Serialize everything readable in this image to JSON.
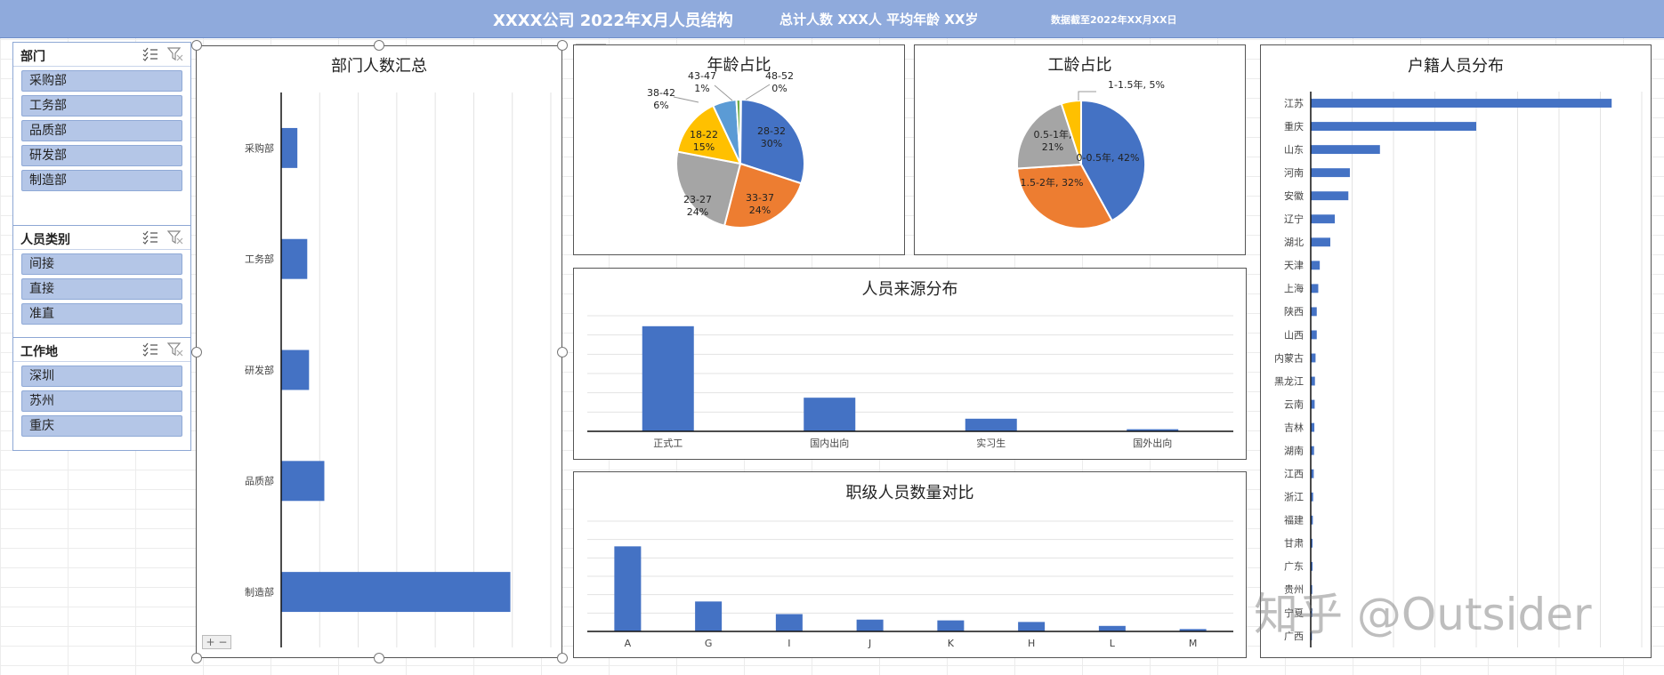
{
  "header": {
    "title": "XXXX公司  2022年X月人员结构",
    "total": "总计人数 XXX人   平均年龄 XX岁",
    "date": "数据截至2022年XX月XX日"
  },
  "slicers": [
    {
      "title": "部门",
      "items": [
        "采购部",
        "工务部",
        "品质部",
        "研发部",
        "制造部"
      ]
    },
    {
      "title": "人员类别",
      "items": [
        "间接",
        "直接",
        "准直"
      ]
    },
    {
      "title": "工作地",
      "items": [
        "深圳",
        "苏州",
        "重庆"
      ]
    }
  ],
  "icons": {
    "multi_select": "multi-select-icon",
    "clear_filter": "clear-filter-icon",
    "add_element": "plus-icon",
    "chart_style": "brush-icon"
  },
  "colors": {
    "header": "#8faadc",
    "bar": "#4472c4",
    "slicer_button": "#b4c6e7",
    "pie": [
      "#4472c4",
      "#ed7d31",
      "#a5a5a5",
      "#ffc000",
      "#5b9bd5",
      "#70ad47"
    ]
  },
  "zoom_control": "+ −",
  "watermark": "知乎 @Outsider",
  "chart_data": [
    {
      "id": "dept",
      "type": "bar",
      "orientation": "horizontal",
      "title": "部门人数汇总",
      "categories": [
        "采购部",
        "工务部",
        "研发部",
        "品质部",
        "制造部"
      ],
      "values": [
        18,
        29,
        31,
        48,
        255
      ],
      "xlim": [
        0,
        300
      ],
      "grid": true
    },
    {
      "id": "age",
      "type": "pie",
      "title": "年龄占比",
      "categories": [
        "28-32",
        "33-37",
        "23-27",
        "18-22",
        "38-42",
        "43-47",
        "48-52"
      ],
      "values": [
        30,
        24,
        24,
        15,
        6,
        1,
        0
      ],
      "labels": [
        "28-32\n30%",
        "33-37\n24%",
        "23-27\n24%",
        "18-22\n15%",
        "38-42\n6%",
        "43-47\n1%",
        "48-52\n0%"
      ]
    },
    {
      "id": "tenure",
      "type": "pie",
      "title": "工龄占比",
      "categories": [
        "0-0.5年",
        "1.5-2年",
        "0.5-1年",
        "1-1.5年"
      ],
      "values": [
        42,
        32,
        21,
        5
      ],
      "labels": [
        "0-0.5年, 42%",
        "1.5-2年, 32%",
        "0.5-1年,\n21%",
        "1-1.5年, 5%"
      ]
    },
    {
      "id": "source",
      "type": "bar",
      "title": "人员来源分布",
      "categories": [
        "正式工",
        "国内出向",
        "实习生",
        "国外出向"
      ],
      "values": [
        100,
        32,
        12,
        2
      ],
      "ylim": [
        0,
        110
      ],
      "grid": true
    },
    {
      "id": "grade",
      "type": "bar",
      "title": "职级人员数量对比",
      "categories": [
        "A",
        "G",
        "I",
        "J",
        "K",
        "H",
        "L",
        "M"
      ],
      "values": [
        108,
        38,
        22,
        15,
        14,
        12,
        7,
        3
      ],
      "ylim": [
        0,
        140
      ],
      "grid": true
    },
    {
      "id": "province",
      "type": "bar",
      "orientation": "horizontal",
      "title": "户籍人员分布",
      "categories": [
        "江苏",
        "重庆",
        "山东",
        "河南",
        "安徽",
        "辽宁",
        "湖北",
        "天津",
        "上海",
        "陕西",
        "山西",
        "内蒙古",
        "黑龙江",
        "云南",
        "吉林",
        "湖南",
        "江西",
        "浙江",
        "福建",
        "甘肃",
        "广东",
        "贵州",
        "宁夏",
        "广西"
      ],
      "values": [
        100,
        55,
        23,
        13,
        12.5,
        8,
        6.5,
        3,
        2.5,
        2,
        2,
        1.6,
        1.4,
        1.3,
        1.2,
        1.1,
        1,
        0.8,
        0.7,
        0.6,
        0.6,
        0.5,
        0.5,
        0.4
      ],
      "xlim": [
        0,
        110
      ],
      "grid": true
    }
  ]
}
